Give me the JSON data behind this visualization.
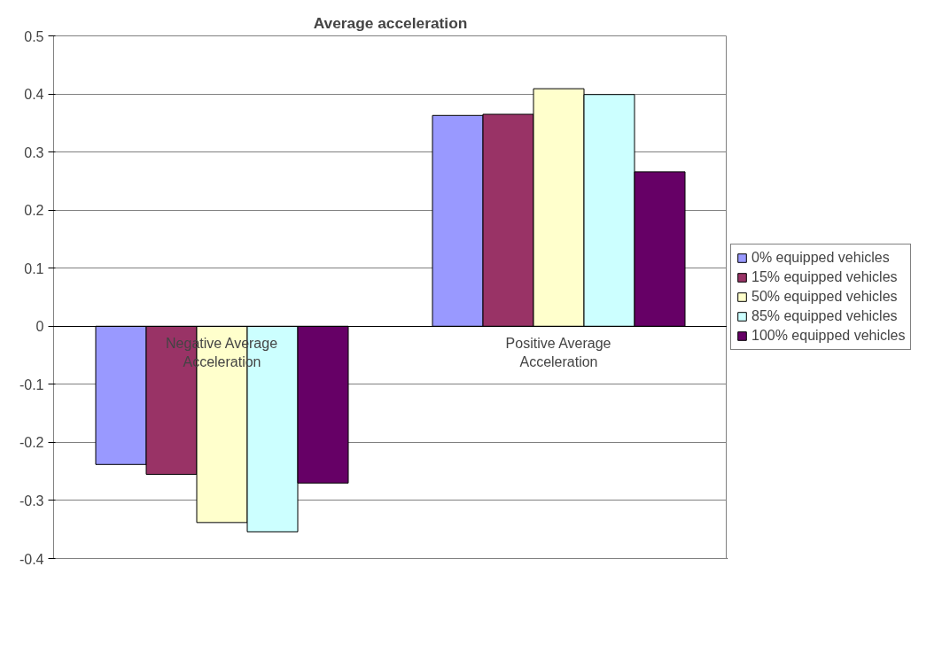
{
  "chart_data": {
    "type": "bar",
    "title": "Average acceleration",
    "categories": [
      "Negative Average Acceleration",
      "Positive Average Acceleration"
    ],
    "series": [
      {
        "name": "0% equipped vehicles",
        "color": "#9999ff",
        "values": [
          -0.238,
          0.363
        ]
      },
      {
        "name": "15% equipped vehicles",
        "color": "#993366",
        "values": [
          -0.255,
          0.365
        ]
      },
      {
        "name": "50% equipped vehicles",
        "color": "#ffffcc",
        "values": [
          -0.338,
          0.409
        ]
      },
      {
        "name": "85% equipped vehicles",
        "color": "#ccffff",
        "values": [
          -0.354,
          0.399
        ]
      },
      {
        "name": "100% equipped vehicles",
        "color": "#660066",
        "values": [
          -0.27,
          0.266
        ]
      }
    ],
    "ylim": [
      -0.4,
      0.5
    ],
    "yticks": [
      -0.4,
      -0.3,
      -0.2,
      -0.1,
      0,
      0.1,
      0.2,
      0.3,
      0.4,
      0.5
    ],
    "grid": "y",
    "legend": "right"
  }
}
